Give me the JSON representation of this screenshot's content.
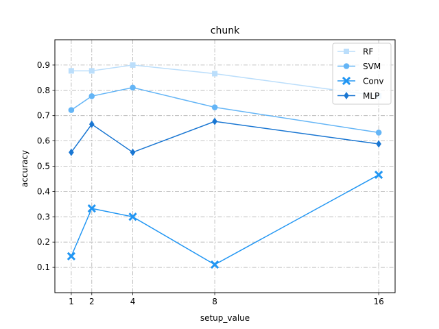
{
  "chart_data": {
    "type": "line",
    "title": "chunk",
    "xlabel": "setup_value",
    "ylabel": "accuracy",
    "x": [
      1,
      2,
      4,
      8,
      16
    ],
    "xticks": [
      "1",
      "2",
      "4",
      "8",
      "16"
    ],
    "xlim": [
      0.2,
      16.8
    ],
    "ylim": [
      0.0,
      1.0
    ],
    "yticks": [
      "0.1",
      "0.2",
      "0.3",
      "0.4",
      "0.5",
      "0.6",
      "0.7",
      "0.8",
      "0.9"
    ],
    "grid": true,
    "legend_position": "top-right",
    "series": [
      {
        "name": "RF",
        "values": [
          0.877,
          0.877,
          0.9,
          0.866,
          0.778
        ],
        "color": "#bbdefb",
        "marker": "square"
      },
      {
        "name": "SVM",
        "values": [
          0.722,
          0.777,
          0.811,
          0.733,
          0.633
        ],
        "color": "#64b5f6",
        "marker": "circle"
      },
      {
        "name": "Conv",
        "values": [
          0.144,
          0.333,
          0.3,
          0.111,
          0.466
        ],
        "color": "#2196f3",
        "marker": "x"
      },
      {
        "name": "MLP",
        "values": [
          0.555,
          0.666,
          0.555,
          0.677,
          0.588
        ],
        "color": "#1976d2",
        "marker": "diamond"
      }
    ]
  }
}
